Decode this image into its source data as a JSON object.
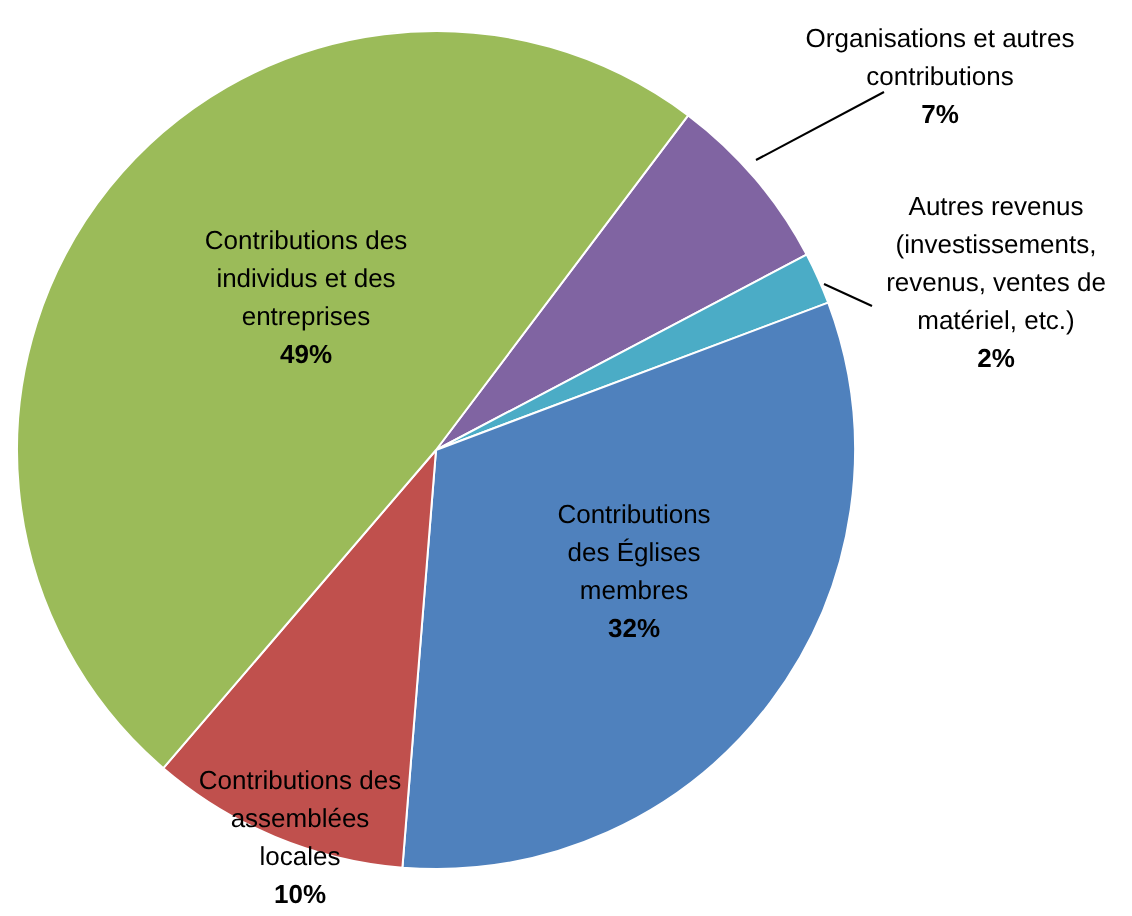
{
  "chart_data": {
    "type": "pie",
    "categories": [
      "Organisations et autres contributions",
      "Autres revenus (investissements, revenus, ventes de matériel, etc.)",
      "Contributions des Églises membres",
      "Contributions des assemblées locales",
      "Contributions des individus et des entreprises"
    ],
    "values": [
      7,
      2,
      32,
      10,
      49
    ],
    "colors": [
      "#8064a2",
      "#4bacc6",
      "#4f81bd",
      "#c0504d",
      "#9bbb59"
    ],
    "value_labels": [
      "7%",
      "2%",
      "32%",
      "10%",
      "49%"
    ],
    "legend": false
  }
}
